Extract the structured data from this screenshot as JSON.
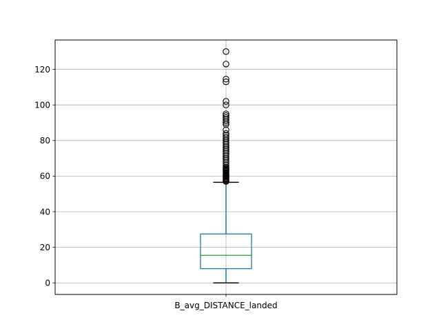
{
  "chart_data": {
    "type": "box",
    "title": "",
    "xlabel": "",
    "ylabel": "",
    "categories": [
      "B_avg_DISTANCE_landed"
    ],
    "ylim": [
      -6.5,
      136.5
    ],
    "yticks": [
      0,
      20,
      40,
      60,
      80,
      100,
      120
    ],
    "grid": true,
    "box": {
      "whisker_low": 0,
      "q1": 8,
      "median": 15.5,
      "q3": 27.5,
      "whisker_high": 56.5,
      "outliers": [
        57,
        57.5,
        58,
        58.5,
        59,
        59.5,
        60,
        60.5,
        61,
        61.5,
        62,
        62.5,
        63,
        63.5,
        64,
        64.5,
        65,
        66,
        67,
        68,
        69,
        70,
        71,
        72,
        73,
        74,
        75,
        76,
        77,
        78,
        79,
        80,
        81,
        82,
        83,
        84,
        86,
        89,
        90,
        91,
        92,
        93,
        94,
        95,
        100,
        102,
        113,
        114.5,
        123,
        130
      ]
    },
    "colors": {
      "box": "#1f77b4",
      "median": "#2ca02c",
      "whisker": "#1f77b4",
      "cap": "#000000",
      "flier": "#000000",
      "grid": "#b0b0b0"
    }
  }
}
